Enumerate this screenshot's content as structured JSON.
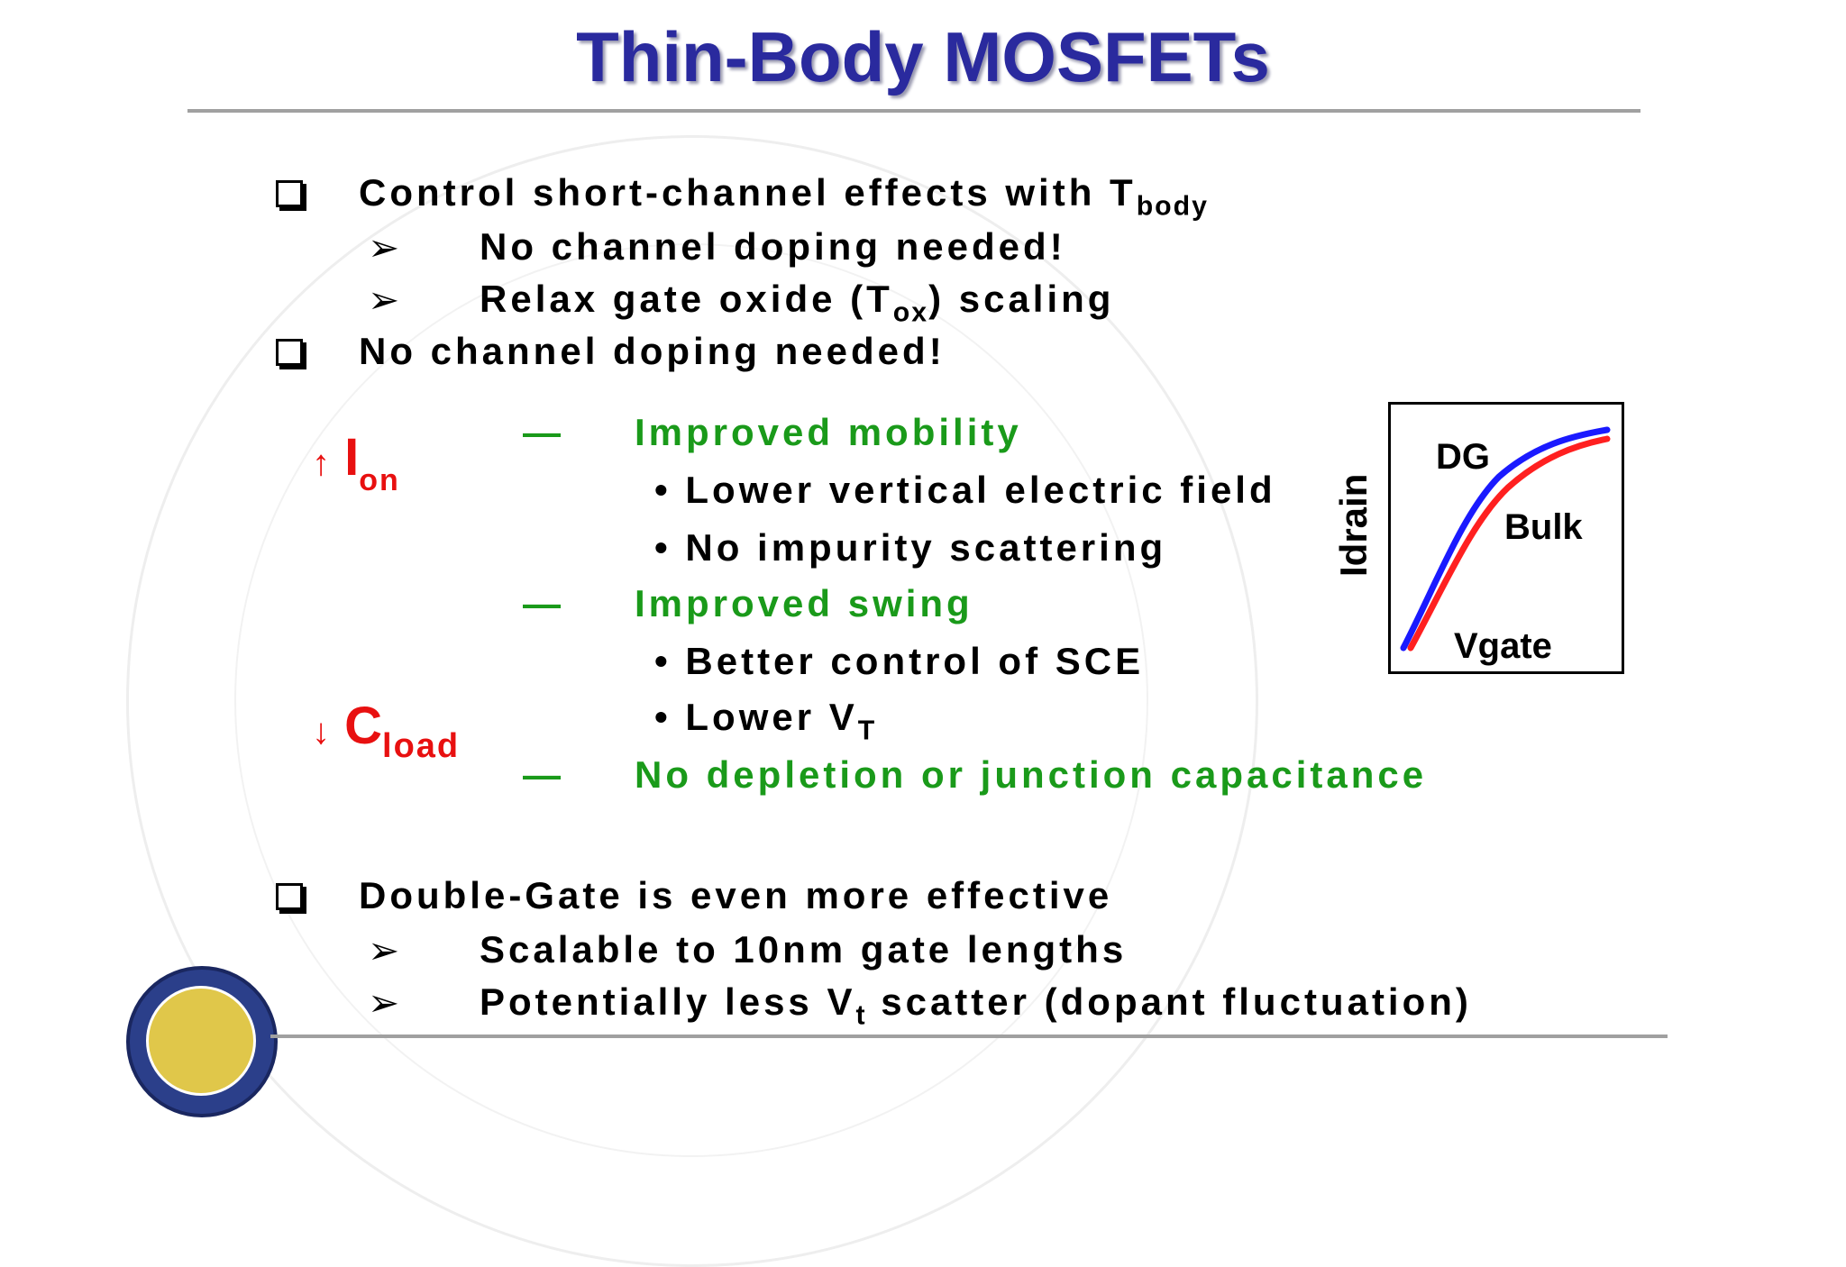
{
  "slide": {
    "title": "Thin-Body MOSFETs",
    "bullets": [
      {
        "text": "Control short-channel effects with T",
        "sub": "body",
        "subitems": [
          {
            "text": "No channel doping needed!",
            "sub": "",
            "after": ""
          },
          {
            "text": "Relax gate oxide (T",
            "sub": "ox",
            "after": ") scaling"
          }
        ]
      },
      {
        "text": "No channel doping needed!"
      },
      {
        "text": "Double-Gate is even more effective",
        "subitems": [
          {
            "text": "Scalable to 10nm gate lengths",
            "sub": "",
            "after": ""
          },
          {
            "text": "Potentially less V",
            "sub": "t",
            "after": " scatter (dopant fluctuation)"
          }
        ]
      }
    ],
    "ion_label": {
      "arrow": "↑",
      "letter": "I",
      "sub": "on"
    },
    "cload_label": {
      "arrow": "↓",
      "letter": "C",
      "sub": "load"
    },
    "dash": "—",
    "effects": [
      {
        "heading": "Improved mobility"
      },
      {
        "item": "Lower vertical electric field"
      },
      {
        "item": "No impurity scattering"
      },
      {
        "heading": "Improved swing"
      },
      {
        "item": "Better control of SCE"
      },
      {
        "item": "Lower V",
        "sub": "T"
      },
      {
        "heading": "No depletion or junction capacitance"
      }
    ],
    "bullet_dot": "•",
    "sub_marker": "➢"
  },
  "inset_plot": {
    "ylabel": "Idrain",
    "xlabel": "Vgate",
    "curves": [
      {
        "name": "DG",
        "color": "#1a1aff"
      },
      {
        "name": "Bulk",
        "color": "#ff2020"
      }
    ]
  },
  "colors": {
    "title": "#2a2a9e",
    "green": "#1a9a1a",
    "red": "#e81010"
  }
}
